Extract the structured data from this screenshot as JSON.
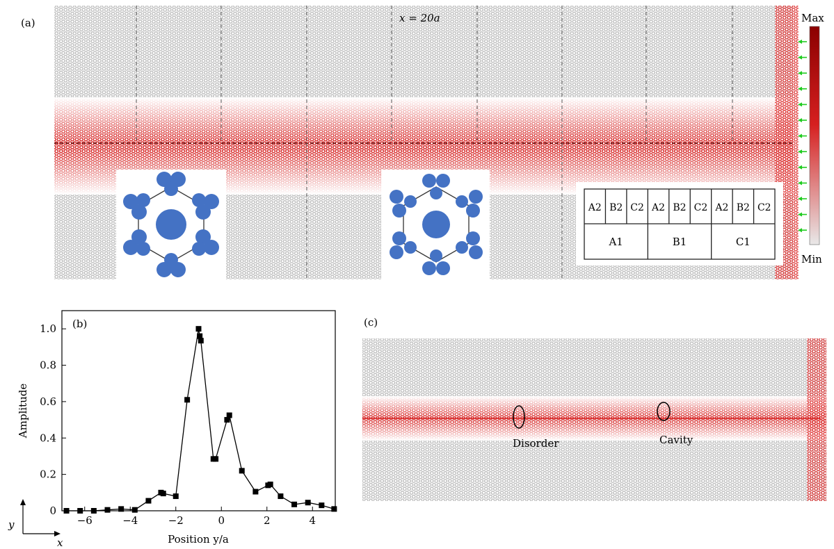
{
  "panel_a": {
    "label": "(a)",
    "annotation": "x = 20a",
    "colorbar": {
      "max_label": "Max",
      "min_label": "Min",
      "max_color": "#8b0000",
      "min_color": "#e8e8e8"
    },
    "table": {
      "top_row": [
        "A2",
        "B2",
        "C2",
        "A2",
        "B2",
        "C2",
        "A2",
        "B2",
        "C2"
      ],
      "bottom_row": [
        "A1",
        "B1",
        "C1"
      ]
    },
    "field_color": "#d62020",
    "rod_color": "#bdbdbd",
    "cell_color": "#4472c4",
    "arrow_color": "#22cc22"
  },
  "panel_b": {
    "label": "(b)",
    "axis_arrow_y": "y",
    "axis_arrow_x": "x"
  },
  "panel_c": {
    "label": "(c)",
    "disorder_label": "Disorder",
    "cavity_label": "Cavity"
  },
  "chart_data": {
    "type": "line",
    "xlabel": "Position y/a",
    "ylabel": "Amplitude",
    "xlim": [
      -7,
      5
    ],
    "ylim": [
      0,
      1.1
    ],
    "xticks": [
      -6,
      -4,
      -2,
      0,
      2,
      4
    ],
    "xtick_labels": [
      "−6",
      "−4",
      "−2",
      "0",
      "2",
      "4"
    ],
    "yticks": [
      0,
      0.2,
      0.4,
      0.6,
      0.8,
      1.0
    ],
    "ytick_labels": [
      "0",
      "0.2",
      "0.4",
      "0.6",
      "0.8",
      "1.0"
    ],
    "series": [
      {
        "marker": "square",
        "x": [
          -6.8,
          -6.2,
          -5.6,
          -5.0,
          -4.4,
          -3.8,
          -3.2,
          -2.65,
          -2.55,
          -2.0,
          -1.5,
          -1.0,
          -0.95,
          -0.9,
          -0.35,
          -0.25,
          0.25,
          0.35,
          0.9,
          1.5,
          2.05,
          2.15,
          2.6,
          3.2,
          3.8,
          4.4,
          4.95
        ],
        "y": [
          0.0,
          0.0,
          0.0,
          0.005,
          0.01,
          0.005,
          0.055,
          0.1,
          0.095,
          0.08,
          0.61,
          1.0,
          0.96,
          0.935,
          0.285,
          0.285,
          0.5,
          0.525,
          0.22,
          0.105,
          0.14,
          0.145,
          0.08,
          0.035,
          0.045,
          0.03,
          0.01
        ]
      }
    ]
  }
}
